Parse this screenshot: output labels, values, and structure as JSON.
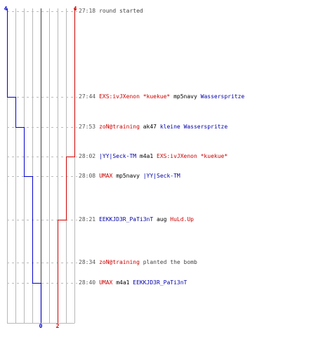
{
  "colors": {
    "team_a": "#0000cc",
    "team_b": "#cc0000",
    "grid": "#b8b8b8",
    "zero_line": "#555555",
    "dashed": "#bbbbbb"
  },
  "axis": {
    "team_a_start": "4",
    "team_b_start": "4",
    "team_a_end": "0",
    "team_b_end": "2"
  },
  "events": [
    {
      "time": "27:18",
      "type": "message",
      "message": "round started"
    },
    {
      "time": "27:44",
      "type": "kill",
      "killer": "EXS:ivJXenon *kuekue*",
      "killer_team": "red",
      "weapon": "mp5navy",
      "victim": "Wasserspritze",
      "victim_team": "blue"
    },
    {
      "time": "27:53",
      "type": "kill",
      "killer": "zoN@training",
      "killer_team": "red",
      "weapon": "ak47",
      "victim": "kleine Wasserspritze",
      "victim_team": "blue"
    },
    {
      "time": "28:02",
      "type": "kill",
      "killer": "|YY|Seck-TM",
      "killer_team": "blue",
      "weapon": "m4a1",
      "victim": "EXS:ivJXenon *kuekue*",
      "victim_team": "red"
    },
    {
      "time": "28:08",
      "type": "kill",
      "killer": "UMAX",
      "killer_team": "red",
      "weapon": "mp5navy",
      "victim": "|YY|Seck-TM",
      "victim_team": "blue"
    },
    {
      "time": "28:21",
      "type": "kill",
      "killer": "EEKKJD3R_PaTi3nT",
      "killer_team": "blue",
      "weapon": "aug",
      "victim": "HuLd.Up",
      "victim_team": "red"
    },
    {
      "time": "28:34",
      "type": "action",
      "actor": "zoN@training",
      "actor_team": "red",
      "message": "planted the bomb"
    },
    {
      "time": "28:40",
      "type": "kill",
      "killer": "UMAX",
      "killer_team": "red",
      "weapon": "m4a1",
      "victim": "EEKKJD3R_PaTi3nT",
      "victim_team": "blue"
    }
  ]
}
